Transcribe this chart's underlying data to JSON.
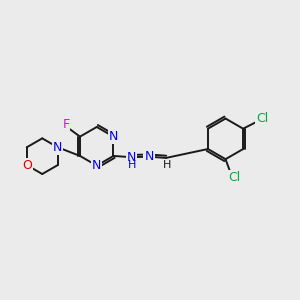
{
  "background_color": "#ebebeb",
  "bond_color": "#1a1a1a",
  "atom_colors": {
    "N": "#0000ee",
    "O": "#dd0000",
    "F": "#ee00ee",
    "Cl": "#00aa44",
    "C": "#1a1a1a",
    "H": "#1a1a1a"
  },
  "lw": 1.4,
  "fontsize": 9
}
